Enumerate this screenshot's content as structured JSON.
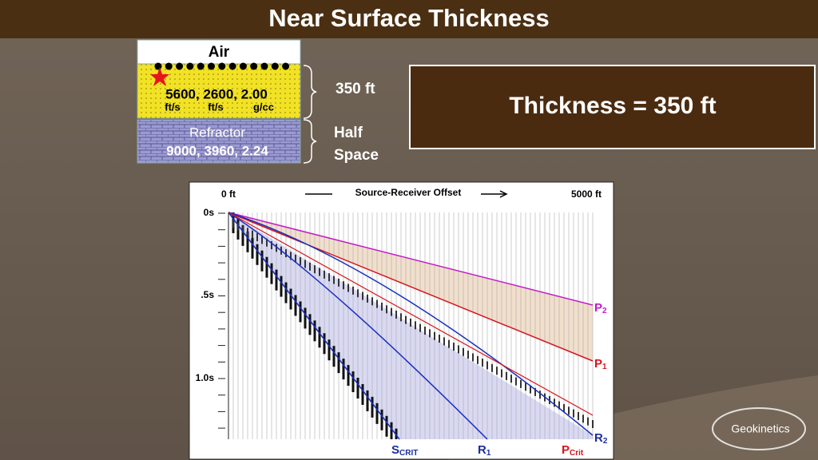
{
  "title": "Near Surface Thickness",
  "model": {
    "air": "Air",
    "layer_values": "5600, 2600,  2.00",
    "layer_units": [
      "ft/s",
      "ft/s",
      "g/cc"
    ],
    "refractor_name": "Refractor",
    "refractor_values": "9000, 3960,  2.24",
    "layer_thickness": "350 ft",
    "half_space": [
      "Half",
      "Space"
    ]
  },
  "result": "Thickness = 350 ft",
  "plot": {
    "x_start": "0 ft",
    "x_label": "Source-Receiver Offset",
    "x_end": "5000 ft",
    "time_labels": [
      "0s",
      ".5s",
      "1.0s"
    ],
    "events": [
      {
        "label": "P",
        "sub": "2"
      },
      {
        "label": "P",
        "sub": "1"
      },
      {
        "label": "R",
        "sub": "2"
      },
      {
        "label": "S",
        "sub": "CRIT"
      },
      {
        "label": "R",
        "sub": "1"
      },
      {
        "label": "P",
        "sub": "Crit"
      }
    ]
  },
  "logo": "Geokinetics"
}
